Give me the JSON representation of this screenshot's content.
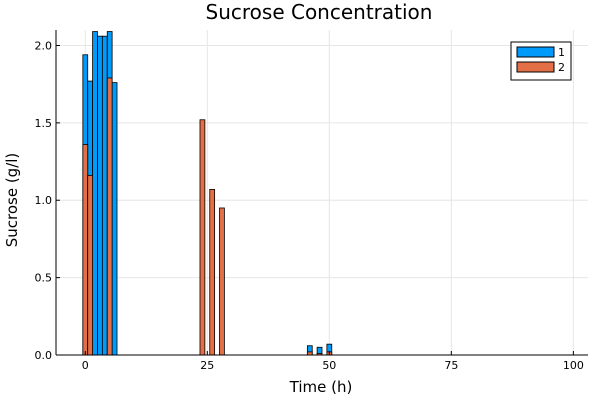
{
  "chart_data": {
    "type": "bar",
    "title": "Sucrose Concentration",
    "xlabel": "Time (h)",
    "ylabel": "Sucrose (g/l)",
    "xlim": [
      -6,
      103
    ],
    "ylim": [
      0,
      2.1
    ],
    "xticks": [
      0,
      25,
      50,
      75,
      100
    ],
    "yticks": [
      0.0,
      0.5,
      1.0,
      1.5,
      2.0
    ],
    "xtick_labels": [
      "0",
      "25",
      "50",
      "75",
      "100"
    ],
    "ytick_labels": [
      "0.0",
      "0.5",
      "1.0",
      "1.5",
      "2.0"
    ],
    "grid": true,
    "legend_position": "top-right",
    "bar_width": 1.0,
    "series": [
      {
        "name": "1",
        "color": "#009AFA",
        "points": [
          {
            "x": 0,
            "y": 1.94
          },
          {
            "x": 1,
            "y": 1.77
          },
          {
            "x": 2,
            "y": 2.09
          },
          {
            "x": 3,
            "y": 2.06
          },
          {
            "x": 4,
            "y": 2.06
          },
          {
            "x": 5,
            "y": 2.09
          },
          {
            "x": 6,
            "y": 1.76
          },
          {
            "x": 46,
            "y": 0.06
          },
          {
            "x": 48,
            "y": 0.05
          },
          {
            "x": 50,
            "y": 0.07
          }
        ]
      },
      {
        "name": "2",
        "color": "#E36F47",
        "points": [
          {
            "x": 0,
            "y": 1.36
          },
          {
            "x": 1,
            "y": 1.16
          },
          {
            "x": 5,
            "y": 1.79
          },
          {
            "x": 24,
            "y": 1.52
          },
          {
            "x": 26,
            "y": 1.07
          },
          {
            "x": 28,
            "y": 0.95
          },
          {
            "x": 46,
            "y": 0.02
          },
          {
            "x": 48,
            "y": 0.01
          },
          {
            "x": 50,
            "y": 0.02
          }
        ]
      }
    ]
  }
}
